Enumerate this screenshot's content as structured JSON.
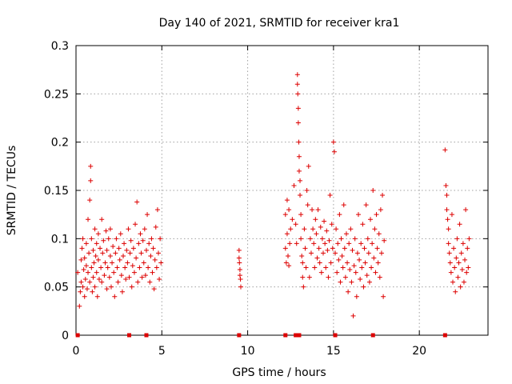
{
  "chart_data": {
    "type": "scatter",
    "title": "Day 140 of 2021, SRMTID for receiver kra1",
    "xlabel": "GPS time / hours",
    "ylabel": "SRMTID / TECUs",
    "xlim": [
      0,
      24
    ],
    "ylim": [
      0,
      0.3
    ],
    "x_ticks": [
      0,
      5,
      10,
      15,
      20
    ],
    "x_tick_labels": [
      "0",
      "5",
      "10",
      "15",
      "20"
    ],
    "y_ticks": [
      0,
      0.05,
      0.1,
      0.15,
      0.2,
      0.25,
      0.3
    ],
    "y_tick_labels": [
      "0",
      "0.05",
      "0.1",
      "0.15",
      "0.2",
      "0.25",
      "0.3"
    ],
    "grid": true,
    "marker": "+",
    "series_color": "#dd0000",
    "zero_markers_x": [
      0.1,
      3.1,
      4.1,
      9.5,
      12.2,
      12.8,
      12.9,
      13.0,
      15.1,
      17.3,
      21.5
    ],
    "series": [
      {
        "name": "SRMTID",
        "points": [
          [
            0.1,
            0.065
          ],
          [
            0.2,
            0.03
          ],
          [
            0.25,
            0.045
          ],
          [
            0.3,
            0.078
          ],
          [
            0.3,
            0.055
          ],
          [
            0.35,
            0.09
          ],
          [
            0.4,
            0.05
          ],
          [
            0.4,
            0.1
          ],
          [
            0.45,
            0.068
          ],
          [
            0.5,
            0.08
          ],
          [
            0.5,
            0.04
          ],
          [
            0.55,
            0.058
          ],
          [
            0.6,
            0.072
          ],
          [
            0.6,
            0.095
          ],
          [
            0.65,
            0.048
          ],
          [
            0.7,
            0.12
          ],
          [
            0.7,
            0.065
          ],
          [
            0.75,
            0.085
          ],
          [
            0.8,
            0.14
          ],
          [
            0.8,
            0.055
          ],
          [
            0.85,
            0.175
          ],
          [
            0.85,
            0.16
          ],
          [
            0.9,
            0.07
          ],
          [
            0.9,
            0.1
          ],
          [
            0.95,
            0.045
          ],
          [
            1.0,
            0.088
          ],
          [
            1.0,
            0.06
          ],
          [
            1.05,
            0.075
          ],
          [
            1.1,
            0.11
          ],
          [
            1.1,
            0.05
          ],
          [
            1.15,
            0.082
          ],
          [
            1.2,
            0.095
          ],
          [
            1.2,
            0.065
          ],
          [
            1.25,
            0.04
          ],
          [
            1.3,
            0.078
          ],
          [
            1.3,
            0.105
          ],
          [
            1.35,
            0.058
          ],
          [
            1.4,
            0.09
          ],
          [
            1.45,
            0.07
          ],
          [
            1.5,
            0.12
          ],
          [
            1.5,
            0.055
          ],
          [
            1.55,
            0.085
          ],
          [
            1.6,
            0.098
          ],
          [
            1.65,
            0.062
          ],
          [
            1.7,
            0.075
          ],
          [
            1.75,
            0.108
          ],
          [
            1.8,
            0.048
          ],
          [
            1.8,
            0.088
          ],
          [
            1.85,
            0.07
          ],
          [
            1.9,
            0.1
          ],
          [
            1.95,
            0.06
          ],
          [
            2.0,
            0.082
          ],
          [
            2.0,
            0.11
          ],
          [
            2.05,
            0.05
          ],
          [
            2.1,
            0.075
          ],
          [
            2.15,
            0.092
          ],
          [
            2.2,
            0.065
          ],
          [
            2.25,
            0.04
          ],
          [
            2.3,
            0.085
          ],
          [
            2.35,
            0.1
          ],
          [
            2.4,
            0.07
          ],
          [
            2.45,
            0.055
          ],
          [
            2.5,
            0.09
          ],
          [
            2.55,
            0.078
          ],
          [
            2.6,
            0.105
          ],
          [
            2.65,
            0.062
          ],
          [
            2.7,
            0.045
          ],
          [
            2.75,
            0.082
          ],
          [
            2.8,
            0.095
          ],
          [
            2.85,
            0.07
          ],
          [
            2.9,
            0.058
          ],
          [
            2.95,
            0.088
          ],
          [
            3.0,
            0.075
          ],
          [
            3.05,
            0.11
          ],
          [
            3.1,
            0.06
          ],
          [
            3.15,
            0.085
          ],
          [
            3.2,
            0.098
          ],
          [
            3.25,
            0.05
          ],
          [
            3.3,
            0.072
          ],
          [
            3.35,
            0.09
          ],
          [
            3.4,
            0.065
          ],
          [
            3.45,
            0.115
          ],
          [
            3.5,
            0.08
          ],
          [
            3.55,
            0.138
          ],
          [
            3.6,
            0.055
          ],
          [
            3.65,
            0.095
          ],
          [
            3.7,
            0.07
          ],
          [
            3.75,
            0.105
          ],
          [
            3.8,
            0.085
          ],
          [
            3.85,
            0.06
          ],
          [
            3.9,
            0.098
          ],
          [
            3.95,
            0.075
          ],
          [
            4.0,
            0.11
          ],
          [
            4.05,
            0.062
          ],
          [
            4.1,
            0.088
          ],
          [
            4.15,
            0.125
          ],
          [
            4.2,
            0.07
          ],
          [
            4.25,
            0.095
          ],
          [
            4.3,
            0.055
          ],
          [
            4.35,
            0.082
          ],
          [
            4.4,
            0.1
          ],
          [
            4.45,
            0.065
          ],
          [
            4.5,
            0.09
          ],
          [
            4.55,
            0.048
          ],
          [
            4.6,
            0.078
          ],
          [
            4.65,
            0.112
          ],
          [
            4.7,
            0.07
          ],
          [
            4.75,
            0.13
          ],
          [
            4.8,
            0.085
          ],
          [
            4.85,
            0.058
          ],
          [
            4.9,
            0.1
          ],
          [
            4.95,
            0.075
          ],
          [
            9.5,
            0.088
          ],
          [
            9.5,
            0.08
          ],
          [
            9.52,
            0.075
          ],
          [
            9.55,
            0.068
          ],
          [
            9.55,
            0.062
          ],
          [
            9.58,
            0.058
          ],
          [
            9.6,
            0.05
          ],
          [
            12.2,
            0.125
          ],
          [
            12.2,
            0.09
          ],
          [
            12.25,
            0.075
          ],
          [
            12.3,
            0.14
          ],
          [
            12.3,
            0.105
          ],
          [
            12.35,
            0.082
          ],
          [
            12.4,
            0.13
          ],
          [
            12.4,
            0.072
          ],
          [
            12.45,
            0.095
          ],
          [
            12.5,
            0.11
          ],
          [
            12.6,
            0.12
          ],
          [
            12.7,
            0.155
          ],
          [
            12.8,
            0.115
          ],
          [
            12.85,
            0.095
          ],
          [
            12.9,
            0.27
          ],
          [
            12.9,
            0.26
          ],
          [
            12.92,
            0.25
          ],
          [
            12.95,
            0.235
          ],
          [
            12.95,
            0.22
          ],
          [
            12.98,
            0.2
          ],
          [
            13.0,
            0.185
          ],
          [
            13.0,
            0.17
          ],
          [
            13.05,
            0.16
          ],
          [
            13.05,
            0.145
          ],
          [
            13.1,
            0.125
          ],
          [
            13.1,
            0.1
          ],
          [
            13.15,
            0.082
          ],
          [
            13.2,
            0.075
          ],
          [
            13.2,
            0.06
          ],
          [
            13.25,
            0.05
          ],
          [
            13.3,
            0.11
          ],
          [
            13.35,
            0.09
          ],
          [
            13.4,
            0.07
          ],
          [
            13.45,
            0.15
          ],
          [
            13.5,
            0.135
          ],
          [
            13.55,
            0.175
          ],
          [
            13.6,
            0.06
          ],
          [
            13.65,
            0.1
          ],
          [
            13.7,
            0.085
          ],
          [
            13.75,
            0.13
          ],
          [
            13.8,
            0.11
          ],
          [
            13.85,
            0.095
          ],
          [
            13.9,
            0.07
          ],
          [
            13.95,
            0.12
          ],
          [
            14.0,
            0.105
          ],
          [
            14.05,
            0.08
          ],
          [
            14.1,
            0.13
          ],
          [
            14.15,
            0.09
          ],
          [
            14.2,
            0.075
          ],
          [
            14.25,
            0.112
          ],
          [
            14.3,
            0.065
          ],
          [
            14.35,
            0.1
          ],
          [
            14.4,
            0.085
          ],
          [
            14.45,
            0.118
          ],
          [
            14.5,
            0.095
          ],
          [
            14.55,
            0.07
          ],
          [
            14.6,
            0.108
          ],
          [
            14.65,
            0.088
          ],
          [
            14.7,
            0.06
          ],
          [
            14.75,
            0.098
          ],
          [
            14.8,
            0.145
          ],
          [
            14.85,
            0.075
          ],
          [
            14.9,
            0.115
          ],
          [
            14.95,
            0.09
          ],
          [
            15.0,
            0.2
          ],
          [
            15.05,
            0.19
          ],
          [
            15.1,
            0.085
          ],
          [
            15.15,
            0.11
          ],
          [
            15.2,
            0.065
          ],
          [
            15.25,
            0.095
          ],
          [
            15.3,
            0.078
          ],
          [
            15.35,
            0.125
          ],
          [
            15.4,
            0.055
          ],
          [
            15.45,
            0.1
          ],
          [
            15.5,
            0.082
          ],
          [
            15.55,
            0.07
          ],
          [
            15.6,
            0.135
          ],
          [
            15.65,
            0.09
          ],
          [
            15.7,
            0.06
          ],
          [
            15.75,
            0.105
          ],
          [
            15.8,
            0.075
          ],
          [
            15.85,
            0.045
          ],
          [
            15.9,
            0.095
          ],
          [
            15.95,
            0.068
          ],
          [
            16.0,
            0.11
          ],
          [
            16.05,
            0.055
          ],
          [
            16.1,
            0.088
          ],
          [
            16.15,
            0.02
          ],
          [
            16.2,
            0.072
          ],
          [
            16.25,
            0.1
          ],
          [
            16.3,
            0.065
          ],
          [
            16.35,
            0.04
          ],
          [
            16.4,
            0.085
          ],
          [
            16.45,
            0.125
          ],
          [
            16.5,
            0.078
          ],
          [
            16.55,
            0.058
          ],
          [
            16.6,
            0.095
          ],
          [
            16.65,
            0.07
          ],
          [
            16.7,
            0.115
          ],
          [
            16.75,
            0.05
          ],
          [
            16.8,
            0.09
          ],
          [
            16.85,
            0.075
          ],
          [
            16.9,
            0.135
          ],
          [
            16.95,
            0.062
          ],
          [
            17.0,
            0.1
          ],
          [
            17.05,
            0.085
          ],
          [
            17.1,
            0.055
          ],
          [
            17.15,
            0.12
          ],
          [
            17.2,
            0.07
          ],
          [
            17.25,
            0.095
          ],
          [
            17.3,
            0.15
          ],
          [
            17.35,
            0.08
          ],
          [
            17.4,
            0.11
          ],
          [
            17.45,
            0.065
          ],
          [
            17.5,
            0.125
          ],
          [
            17.55,
            0.09
          ],
          [
            17.6,
            0.075
          ],
          [
            17.65,
            0.105
          ],
          [
            17.7,
            0.06
          ],
          [
            17.75,
            0.13
          ],
          [
            17.8,
            0.085
          ],
          [
            17.85,
            0.145
          ],
          [
            17.9,
            0.04
          ],
          [
            17.95,
            0.098
          ],
          [
            21.5,
            0.192
          ],
          [
            21.55,
            0.155
          ],
          [
            21.6,
            0.145
          ],
          [
            21.6,
            0.13
          ],
          [
            21.65,
            0.12
          ],
          [
            21.7,
            0.11
          ],
          [
            21.7,
            0.095
          ],
          [
            21.75,
            0.085
          ],
          [
            21.8,
            0.075
          ],
          [
            21.85,
            0.065
          ],
          [
            21.9,
            0.125
          ],
          [
            21.95,
            0.055
          ],
          [
            22.0,
            0.09
          ],
          [
            22.05,
            0.07
          ],
          [
            22.1,
            0.045
          ],
          [
            22.15,
            0.08
          ],
          [
            22.2,
            0.1
          ],
          [
            22.25,
            0.06
          ],
          [
            22.3,
            0.075
          ],
          [
            22.35,
            0.115
          ],
          [
            22.4,
            0.05
          ],
          [
            22.45,
            0.085
          ],
          [
            22.5,
            0.068
          ],
          [
            22.55,
            0.095
          ],
          [
            22.6,
            0.055
          ],
          [
            22.65,
            0.078
          ],
          [
            22.7,
            0.13
          ],
          [
            22.75,
            0.065
          ],
          [
            22.8,
            0.09
          ],
          [
            22.85,
            0.07
          ],
          [
            22.9,
            0.1
          ]
        ]
      }
    ]
  }
}
